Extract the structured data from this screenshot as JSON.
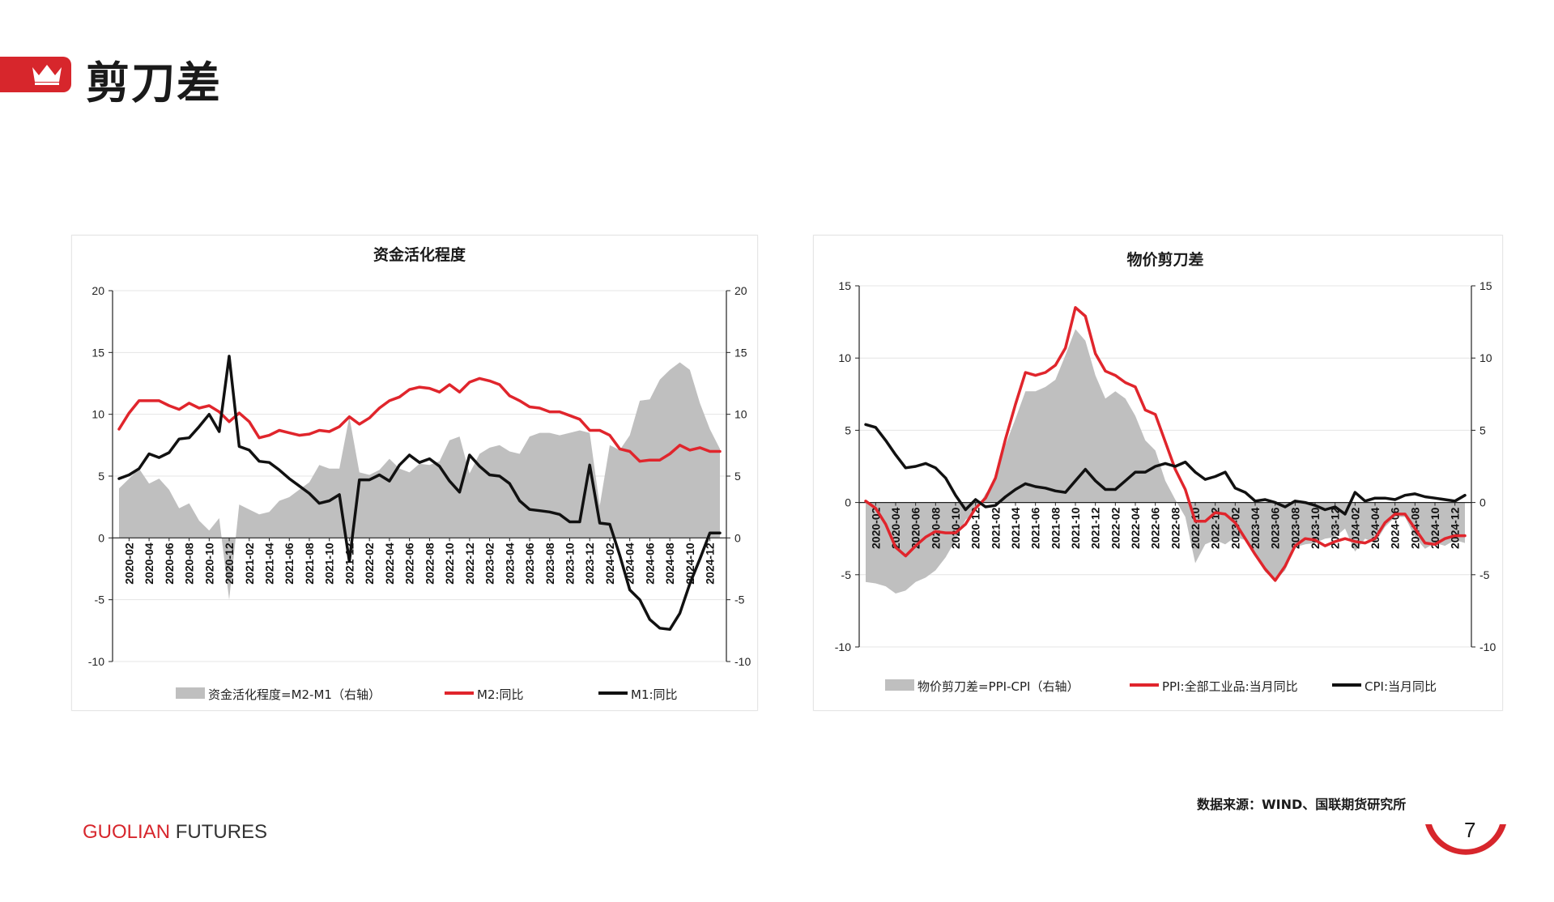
{
  "page": {
    "title": "剪刀差",
    "source_note": "数据来源：WIND、国联期货研究所",
    "brand_part1": "GUOLIAN",
    "brand_part2": "FUTURES",
    "page_number": "7"
  },
  "colors": {
    "brand_red": "#d7262c",
    "series_red": "#e0252c",
    "series_black": "#111111",
    "area_gray": "#bfbfbf"
  },
  "icons": [
    "crown-icon"
  ],
  "chart_data": [
    {
      "id": "left",
      "type": "line",
      "title": "资金活化程度",
      "ylim": [
        -10,
        20
      ],
      "yticks": [
        -10,
        -5,
        0,
        5,
        10,
        15,
        20
      ],
      "ylim_right": [
        -10,
        20
      ],
      "yticks_right": [
        -10,
        -5,
        0,
        5,
        10,
        15,
        20
      ],
      "grid": true,
      "legend_position": "bottom",
      "x_start": "2020-01",
      "x": [
        "2020-01",
        "2020-02",
        "2020-03",
        "2020-04",
        "2020-05",
        "2020-06",
        "2020-07",
        "2020-08",
        "2020-09",
        "2020-10",
        "2020-11",
        "2020-12",
        "2021-01",
        "2021-02",
        "2021-03",
        "2021-04",
        "2021-05",
        "2021-06",
        "2021-07",
        "2021-08",
        "2021-09",
        "2021-10",
        "2021-11",
        "2021-12",
        "2022-01",
        "2022-02",
        "2022-03",
        "2022-04",
        "2022-05",
        "2022-06",
        "2022-07",
        "2022-08",
        "2022-09",
        "2022-10",
        "2022-11",
        "2022-12",
        "2023-01",
        "2023-02",
        "2023-03",
        "2023-04",
        "2023-05",
        "2023-06",
        "2023-07",
        "2023-08",
        "2023-09",
        "2023-10",
        "2023-11",
        "2023-12",
        "2024-01",
        "2024-02",
        "2024-03",
        "2024-04",
        "2024-05",
        "2024-06",
        "2024-07",
        "2024-08",
        "2024-09",
        "2024-10",
        "2024-11",
        "2024-12",
        "2025-01"
      ],
      "xtick_labels": [
        "2020-02",
        "2020-04",
        "2020-06",
        "2020-08",
        "2020-10",
        "2020-12",
        "2021-02",
        "2021-04",
        "2021-06",
        "2021-08",
        "2021-10",
        "2021-12",
        "2022-02",
        "2022-04",
        "2022-06",
        "2022-08",
        "2022-10",
        "2022-12",
        "2023-02",
        "2023-04",
        "2023-06",
        "2023-08",
        "2023-10",
        "2023-12",
        "2024-02",
        "2024-04",
        "2024-06",
        "2024-08",
        "2024-10",
        "2024-12"
      ],
      "series": [
        {
          "name": "资金活化程度=M2-M1（右轴）",
          "type": "area",
          "axis": "right",
          "values": [
            4.0,
            4.8,
            5.6,
            4.4,
            4.8,
            3.9,
            2.4,
            2.8,
            1.4,
            0.6,
            1.6,
            -5.0,
            2.7,
            2.3,
            1.9,
            2.1,
            3.0,
            3.3,
            3.9,
            4.5,
            5.9,
            5.6,
            5.6,
            9.8,
            5.3,
            5.1,
            5.5,
            6.4,
            5.6,
            5.3,
            6.0,
            5.9,
            6.2,
            7.9,
            8.2,
            5.2,
            6.8,
            7.3,
            7.5,
            7.0,
            6.8,
            8.2,
            8.5,
            8.5,
            8.3,
            8.5,
            8.7,
            8.5,
            2.6,
            7.5,
            7.1,
            8.3,
            11.1,
            11.2,
            12.8,
            13.6,
            14.2,
            13.6,
            10.9,
            8.8,
            7.2
          ]
        },
        {
          "name": "M2:同比",
          "type": "line",
          "axis": "left",
          "values": [
            8.8,
            10.1,
            11.1,
            11.1,
            11.1,
            10.7,
            10.4,
            10.9,
            10.5,
            10.7,
            10.2,
            9.4,
            10.1,
            9.4,
            8.1,
            8.3,
            8.7,
            8.5,
            8.3,
            8.4,
            8.7,
            8.6,
            9.0,
            9.8,
            9.2,
            9.7,
            10.5,
            11.1,
            11.4,
            12.0,
            12.2,
            12.1,
            11.8,
            12.4,
            11.8,
            12.6,
            12.9,
            12.7,
            12.4,
            11.5,
            11.1,
            10.6,
            10.5,
            10.2,
            10.2,
            9.9,
            9.6,
            8.7,
            8.7,
            8.3,
            7.2,
            7.0,
            6.2,
            6.3,
            6.3,
            6.8,
            7.5,
            7.1,
            7.3,
            7.0,
            7.0
          ]
        },
        {
          "name": "M1:同比",
          "type": "line",
          "axis": "left",
          "values": [
            4.8,
            5.1,
            5.6,
            6.8,
            6.5,
            6.9,
            8.0,
            8.1,
            9.0,
            10.0,
            8.6,
            14.7,
            7.4,
            7.1,
            6.2,
            6.1,
            5.5,
            4.8,
            4.2,
            3.6,
            2.8,
            3.0,
            3.5,
            -1.9,
            4.7,
            4.7,
            5.1,
            4.6,
            5.9,
            6.7,
            6.1,
            6.4,
            5.8,
            4.6,
            3.7,
            6.7,
            5.8,
            5.1,
            5.0,
            4.4,
            3.0,
            2.3,
            2.2,
            2.1,
            1.9,
            1.3,
            1.3,
            5.9,
            1.2,
            1.1,
            -1.4,
            -4.2,
            -5.0,
            -6.6,
            -7.3,
            -7.4,
            -6.1,
            -3.7,
            -1.7,
            0.4,
            0.4
          ]
        }
      ]
    },
    {
      "id": "right",
      "type": "line",
      "title": "物价剪刀差",
      "ylim": [
        -10,
        15
      ],
      "yticks": [
        -10,
        -5,
        0,
        5,
        10,
        15
      ],
      "ylim_right": [
        -10,
        15
      ],
      "yticks_right": [
        -10,
        -5,
        0,
        5,
        10,
        15
      ],
      "grid": true,
      "legend_position": "bottom",
      "x_start": "2020-01",
      "x": [
        "2020-01",
        "2020-02",
        "2020-03",
        "2020-04",
        "2020-05",
        "2020-06",
        "2020-07",
        "2020-08",
        "2020-09",
        "2020-10",
        "2020-11",
        "2020-12",
        "2021-01",
        "2021-02",
        "2021-03",
        "2021-04",
        "2021-05",
        "2021-06",
        "2021-07",
        "2021-08",
        "2021-09",
        "2021-10",
        "2021-11",
        "2021-12",
        "2022-01",
        "2022-02",
        "2022-03",
        "2022-04",
        "2022-05",
        "2022-06",
        "2022-07",
        "2022-08",
        "2022-09",
        "2022-10",
        "2022-11",
        "2022-12",
        "2023-01",
        "2023-02",
        "2023-03",
        "2023-04",
        "2023-05",
        "2023-06",
        "2023-07",
        "2023-08",
        "2023-09",
        "2023-10",
        "2023-11",
        "2023-12",
        "2024-01",
        "2024-02",
        "2024-03",
        "2024-04",
        "2024-05",
        "2024-06",
        "2024-07",
        "2024-08",
        "2024-09",
        "2024-10",
        "2024-11",
        "2024-12",
        "2025-01"
      ],
      "xtick_labels": [
        "2020-02",
        "2020-04",
        "2020-06",
        "2020-08",
        "2020-10",
        "2020-12",
        "2021-02",
        "2021-04",
        "2021-06",
        "2021-08",
        "2021-10",
        "2021-12",
        "2022-02",
        "2022-04",
        "2022-06",
        "2022-08",
        "2022-10",
        "2022-12",
        "2023-02",
        "2023-04",
        "2023-06",
        "2023-08",
        "2023-10",
        "2023-12",
        "2024-02",
        "2024-04",
        "2024-06",
        "2024-08",
        "2024-10",
        "2024-12"
      ],
      "series": [
        {
          "name": "物价剪刀差=PPI-CPI（右轴）",
          "type": "area",
          "axis": "right",
          "values": [
            -5.5,
            -5.6,
            -5.8,
            -6.3,
            -6.1,
            -5.5,
            -5.2,
            -4.7,
            -3.8,
            -2.6,
            -1.2,
            -0.6,
            0.6,
            1.5,
            4.0,
            5.8,
            7.7,
            7.7,
            8.0,
            8.5,
            10.2,
            12.0,
            11.2,
            8.8,
            7.2,
            7.7,
            7.2,
            6.0,
            4.3,
            3.6,
            1.5,
            0.2,
            -1.0,
            -4.2,
            -2.9,
            -2.6,
            -2.9,
            -2.4,
            -2.6,
            -3.7,
            -4.8,
            -5.4,
            -4.7,
            -3.1,
            -2.9,
            -2.8,
            -2.5,
            -2.4,
            -1.8,
            -3.4,
            -2.5,
            -2.8,
            -1.7,
            -1.0,
            -1.0,
            -2.4,
            -3.2,
            -2.8,
            -3.0,
            -2.6,
            -2.8
          ]
        },
        {
          "name": "PPI:全部工业品:当月同比",
          "type": "line",
          "axis": "left",
          "values": [
            0.1,
            -0.4,
            -1.5,
            -3.1,
            -3.7,
            -3.0,
            -2.4,
            -2.0,
            -2.1,
            -2.1,
            -1.5,
            -0.4,
            0.3,
            1.7,
            4.4,
            6.8,
            9.0,
            8.8,
            9.0,
            9.5,
            10.7,
            13.5,
            12.9,
            10.3,
            9.1,
            8.8,
            8.3,
            8.0,
            6.4,
            6.1,
            4.2,
            2.3,
            0.9,
            -1.3,
            -1.3,
            -0.7,
            -0.8,
            -1.4,
            -2.5,
            -3.6,
            -4.6,
            -5.4,
            -4.4,
            -3.0,
            -2.5,
            -2.6,
            -3.0,
            -2.7,
            -2.5,
            -2.7,
            -2.8,
            -2.5,
            -1.4,
            -0.8,
            -0.8,
            -1.8,
            -2.8,
            -2.9,
            -2.5,
            -2.3,
            -2.3
          ]
        },
        {
          "name": "CPI:当月同比",
          "type": "line",
          "axis": "left",
          "values": [
            5.4,
            5.2,
            4.3,
            3.3,
            2.4,
            2.5,
            2.7,
            2.4,
            1.7,
            0.5,
            -0.5,
            0.2,
            -0.3,
            -0.2,
            0.4,
            0.9,
            1.3,
            1.1,
            1.0,
            0.8,
            0.7,
            1.5,
            2.3,
            1.5,
            0.9,
            0.9,
            1.5,
            2.1,
            2.1,
            2.5,
            2.7,
            2.5,
            2.8,
            2.1,
            1.6,
            1.8,
            2.1,
            1.0,
            0.7,
            0.1,
            0.2,
            0.0,
            -0.3,
            0.1,
            0.0,
            -0.2,
            -0.5,
            -0.3,
            -0.8,
            0.7,
            0.1,
            0.3,
            0.3,
            0.2,
            0.5,
            0.6,
            0.4,
            0.3,
            0.2,
            0.1,
            0.5
          ]
        }
      ]
    }
  ]
}
